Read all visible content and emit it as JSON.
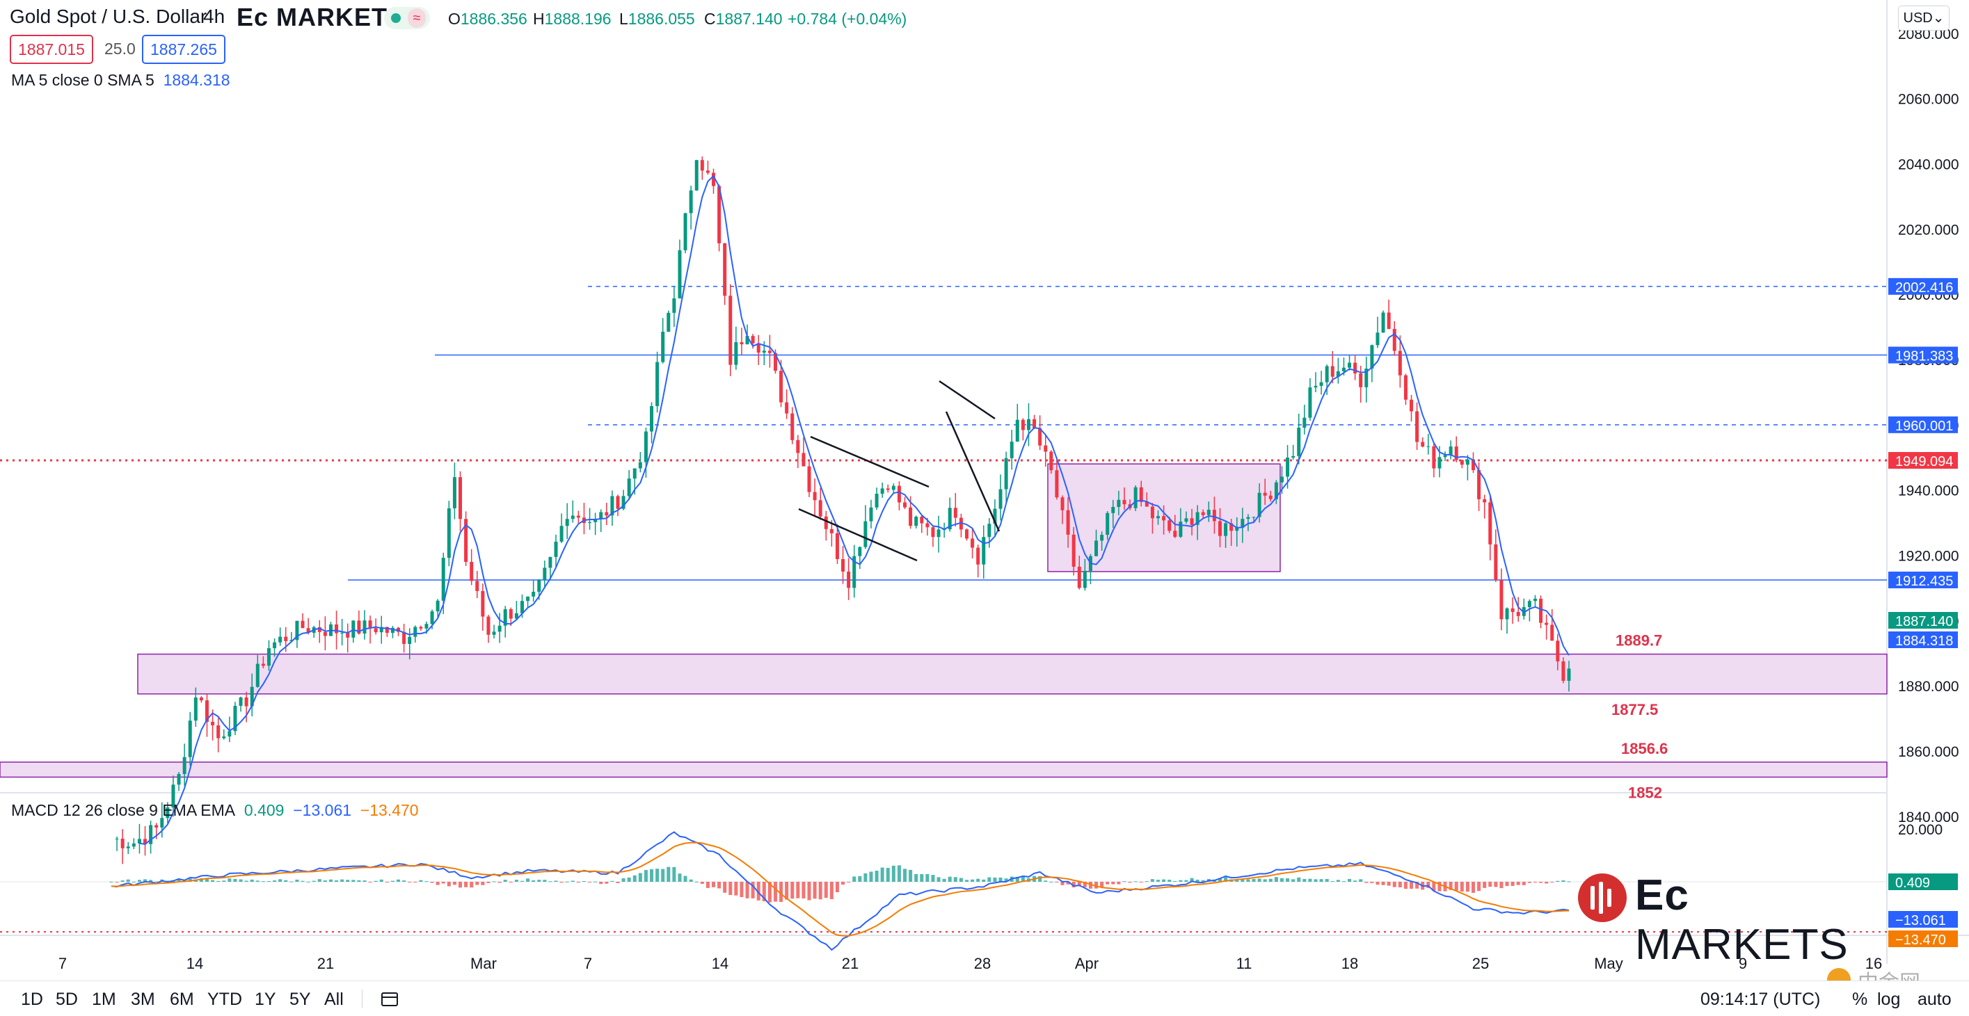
{
  "header": {
    "title": "Gold Spot / U.S. Dollar",
    "timeframe": "4h",
    "brand": "Ec MARKETS",
    "wave_symbol": "≈",
    "open_label": "O",
    "open": "1886.356",
    "high_label": "H",
    "high": "1888.196",
    "low_label": "L",
    "low": "1886.055",
    "close_label": "C",
    "close": "1887.140",
    "change": "+0.784 (+0.04%)",
    "bid": "1887.015",
    "spread": "25.0",
    "ask": "1887.265",
    "currency": "USD"
  },
  "ma_legend": {
    "label": "MA 5 close 0 SMA 5",
    "value": "1884.318"
  },
  "macd_legend": {
    "label": "MACD 12 26 close 9 EMA EMA",
    "hist": "0.409",
    "macd": "−13.061",
    "signal": "−13.470"
  },
  "colors": {
    "up": "#089981",
    "down": "#f23645",
    "ma": "#2962ff",
    "signal": "#f57c00",
    "zone": "#e1bee7",
    "zone_border": "#8e24aa",
    "red_label": "#e0324a"
  },
  "chart_data": {
    "type": "candlestick",
    "title": "Gold Spot / U.S. Dollar",
    "timeframe": "4h",
    "ylim": [
      1830,
      2090
    ],
    "y_ticks": [
      "2080.000",
      "2060.000",
      "2040.000",
      "2020.000",
      "2000.000",
      "1980.000",
      "1960.000",
      "1940.000",
      "1920.000",
      "1900.000",
      "1880.000",
      "1860.000",
      "1840.000"
    ],
    "x_ticks": [
      "7",
      "14",
      "21",
      "Mar",
      "7",
      "14",
      "21",
      "28",
      "Apr",
      "11",
      "18",
      "25",
      "May",
      "9",
      "16"
    ],
    "close_anchors": [
      [
        0,
        1833
      ],
      [
        4,
        1832
      ],
      [
        8,
        1836
      ],
      [
        12,
        1852
      ],
      [
        15,
        1878
      ],
      [
        19,
        1864
      ],
      [
        24,
        1876
      ],
      [
        28,
        1892
      ],
      [
        34,
        1898
      ],
      [
        40,
        1897
      ],
      [
        47,
        1898
      ],
      [
        52,
        1895
      ],
      [
        58,
        1905
      ],
      [
        61,
        1945
      ],
      [
        63,
        1918
      ],
      [
        67,
        1896
      ],
      [
        70,
        1902
      ],
      [
        75,
        1906
      ],
      [
        78,
        1918
      ],
      [
        81,
        1934
      ],
      [
        86,
        1930
      ],
      [
        91,
        1939
      ],
      [
        95,
        1955
      ],
      [
        98,
        1988
      ],
      [
        100,
        2001
      ],
      [
        104,
        2044
      ],
      [
        107,
        2032
      ],
      [
        110,
        1980
      ],
      [
        113,
        1990
      ],
      [
        117,
        1980
      ],
      [
        121,
        1958
      ],
      [
        124,
        1942
      ],
      [
        128,
        1925
      ],
      [
        131,
        1913
      ],
      [
        135,
        1937
      ],
      [
        138,
        1943
      ],
      [
        142,
        1930
      ],
      [
        146,
        1927
      ],
      [
        150,
        1934
      ],
      [
        154,
        1920
      ],
      [
        158,
        1940
      ],
      [
        161,
        1962
      ],
      [
        164,
        1958
      ],
      [
        167,
        1945
      ],
      [
        172,
        1910
      ],
      [
        175,
        1922
      ],
      [
        178,
        1934
      ],
      [
        182,
        1938
      ],
      [
        185,
        1932
      ],
      [
        189,
        1926
      ],
      [
        193,
        1934
      ],
      [
        197,
        1928
      ],
      [
        201,
        1931
      ],
      [
        206,
        1940
      ],
      [
        210,
        1952
      ],
      [
        213,
        1969
      ],
      [
        216,
        1976
      ],
      [
        219,
        1978
      ],
      [
        222,
        1974
      ],
      [
        226,
        1995
      ],
      [
        229,
        1978
      ],
      [
        232,
        1955
      ],
      [
        235,
        1949
      ],
      [
        238,
        1954
      ],
      [
        241,
        1948
      ],
      [
        244,
        1936
      ],
      [
        247,
        1902
      ],
      [
        250,
        1903
      ],
      [
        253,
        1904
      ],
      [
        256,
        1892
      ],
      [
        258,
        1884
      ],
      [
        259,
        1887
      ]
    ],
    "ma_label": "MA 5 close 0 SMA 5",
    "ma_value": 1884.318,
    "horizontal_lines": [
      {
        "value": 2002.416,
        "style": "dashed",
        "color": "blue",
        "label": "2002.416"
      },
      {
        "value": 1981.383,
        "style": "solid",
        "color": "blue",
        "label": "1981.383"
      },
      {
        "value": 1960.001,
        "style": "dashed",
        "color": "blue",
        "label": "1960.001"
      },
      {
        "value": 1949.094,
        "style": "dotted",
        "color": "red",
        "label": "1949.094"
      },
      {
        "value": 1912.435,
        "style": "solid",
        "color": "blue",
        "label": "1912.435"
      }
    ],
    "zones": [
      {
        "from": 1877.5,
        "to": 1889.7,
        "label_top": "1889.7",
        "label_bottom": "1877.5"
      },
      {
        "from": 1852,
        "to": 1856.6,
        "label_top": "1856.6",
        "label_bottom": "1852"
      },
      {
        "from": 1915,
        "to": 1948,
        "label_top": "",
        "label_bottom": ""
      }
    ],
    "price_labels": {
      "last": "1887.140",
      "ma": "1884.318"
    },
    "macd": {
      "params": "12 26 close 9 EMA EMA",
      "histogram": 0.409,
      "macd": -13.061,
      "signal": -13.47,
      "y_tick": "20.000",
      "macd_anchors": [
        [
          0,
          -2
        ],
        [
          20,
          3
        ],
        [
          40,
          6
        ],
        [
          55,
          8
        ],
        [
          64,
          2
        ],
        [
          75,
          5
        ],
        [
          90,
          4
        ],
        [
          100,
          22
        ],
        [
          108,
          12
        ],
        [
          118,
          -12
        ],
        [
          128,
          -30
        ],
        [
          140,
          -6
        ],
        [
          155,
          -2
        ],
        [
          165,
          4
        ],
        [
          175,
          -5
        ],
        [
          190,
          -1
        ],
        [
          210,
          6
        ],
        [
          222,
          8
        ],
        [
          232,
          0
        ],
        [
          242,
          -12
        ],
        [
          250,
          -14
        ],
        [
          259,
          -13
        ]
      ]
    }
  },
  "bottom_bar": {
    "ranges": [
      "1D",
      "5D",
      "1M",
      "3M",
      "6M",
      "YTD",
      "1Y",
      "5Y",
      "All"
    ],
    "clock": "09:14:17 (UTC)",
    "percent": "%",
    "log": "log",
    "auto": "auto"
  },
  "logo": {
    "ec": "Ec",
    "markets": "MARKETS"
  },
  "watermark": "中金网"
}
